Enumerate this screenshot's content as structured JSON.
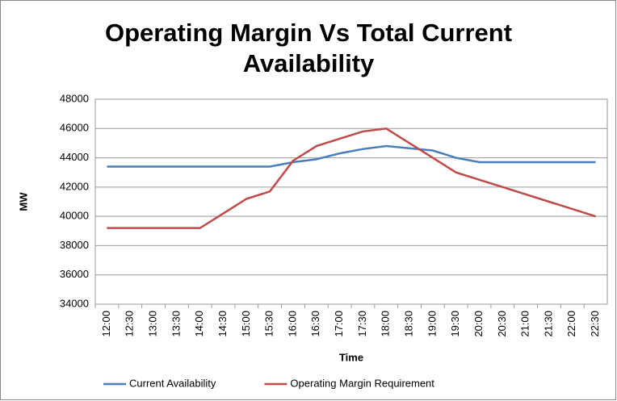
{
  "chart_data": {
    "type": "line",
    "title": "Operating Margin Vs Total Current Availability",
    "x_label": "Time",
    "y_label": "MW",
    "categories": [
      "12:00",
      "12:30",
      "13:00",
      "13:30",
      "14:00",
      "14:30",
      "15:00",
      "15:30",
      "16:00",
      "16:30",
      "17:00",
      "17:30",
      "18:00",
      "18:30",
      "19:00",
      "19:30",
      "20:00",
      "20:30",
      "21:00",
      "21:30",
      "22:00",
      "22:30"
    ],
    "series": [
      {
        "name": "Current Availability",
        "color": "#4a7ebb",
        "values": [
          43400,
          43400,
          43400,
          43400,
          43400,
          43400,
          43400,
          43400,
          43700,
          43900,
          44300,
          44600,
          44800,
          44650,
          44500,
          44000,
          43700,
          43700,
          43700,
          43700,
          43700,
          43700
        ]
      },
      {
        "name": "Operating Margin Requirement",
        "color": "#be4b48",
        "values": [
          39200,
          39200,
          39200,
          39200,
          39200,
          40200,
          41200,
          41700,
          43800,
          44800,
          45300,
          45800,
          46000,
          45000,
          44000,
          43000,
          42500,
          42000,
          41500,
          41000,
          40500,
          40000
        ]
      }
    ],
    "ylim": [
      34000,
      48000
    ],
    "yticks": [
      34000,
      36000,
      38000,
      40000,
      42000,
      44000,
      46000,
      48000
    ],
    "grid": true,
    "legend": "bottom"
  }
}
